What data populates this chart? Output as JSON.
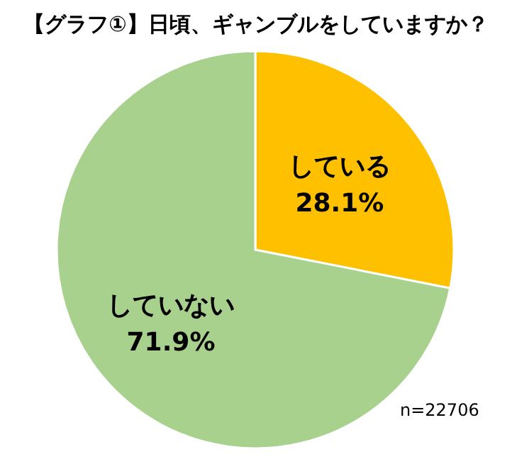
{
  "chart_data": {
    "type": "pie",
    "title": "【グラフ①】日頃、ギャンブルをしていますか？",
    "categories": [
      "している",
      "していない"
    ],
    "values": [
      28.1,
      71.9
    ],
    "value_labels": [
      "28.1%",
      "71.9%"
    ],
    "colors": [
      "#ffc000",
      "#a9d18e"
    ],
    "annotations": [
      "n=22706"
    ]
  }
}
